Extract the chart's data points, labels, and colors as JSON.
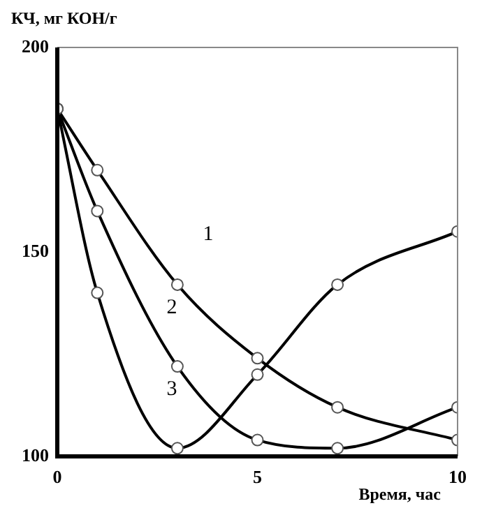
{
  "chart_data": {
    "type": "line",
    "xlabel": "Время, час",
    "ylabel": "КЧ, мг КОН/г",
    "x": [
      0,
      1,
      3,
      5,
      7,
      10
    ],
    "series": [
      {
        "color": "#000000",
        "values": [
          185,
          170,
          142,
          124,
          112,
          104
        ]
      },
      {
        "color": "#000000",
        "values": [
          185,
          160,
          122,
          104,
          102,
          112
        ]
      },
      {
        "color": "#000000",
        "values": [
          185,
          140,
          102,
          120,
          142,
          155
        ]
      }
    ],
    "xlim": [
      0,
      10
    ],
    "xticks": [
      0,
      5,
      10
    ],
    "ylim": [
      100,
      200
    ],
    "yticks": [
      100,
      150,
      200
    ],
    "grid": false,
    "legend": false,
    "marker": "circle",
    "line_style": "solid",
    "annotations": [
      "1",
      "2",
      "3"
    ]
  }
}
